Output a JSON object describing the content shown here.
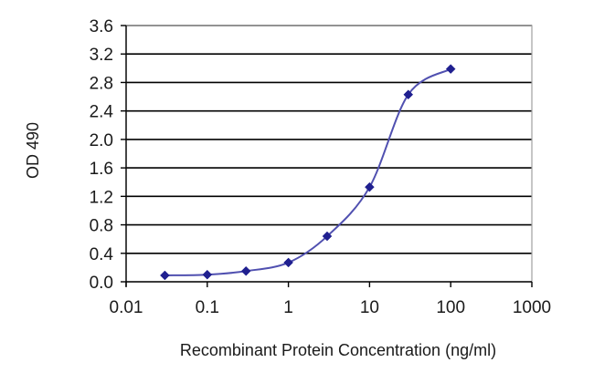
{
  "chart_data": {
    "type": "line",
    "xlabel": "Recombinant Protein Concentration (ng/ml)",
    "ylabel": "OD 490",
    "x_scale": "log",
    "xlim": [
      0.01,
      1000
    ],
    "ylim": [
      0,
      3.6
    ],
    "x_ticks": [
      0.01,
      0.1,
      1,
      10,
      100,
      1000
    ],
    "x_tick_labels": [
      "0.01",
      "0.1",
      "1",
      "10",
      "100",
      "1000"
    ],
    "y_ticks": [
      0,
      0.4,
      0.8,
      1.2,
      1.6,
      2.0,
      2.4,
      2.8,
      3.2,
      3.6
    ],
    "y_tick_labels": [
      "0.0",
      "0.4",
      "0.8",
      "1.2",
      "1.6",
      "2.0",
      "2.4",
      "2.8",
      "3.2",
      "3.6"
    ],
    "grid": "horizontal",
    "series": [
      {
        "x": [
          0.03,
          0.1,
          0.3,
          1,
          3,
          10,
          30,
          100
        ],
        "y": [
          0.09,
          0.1,
          0.15,
          0.27,
          0.64,
          1.33,
          2.63,
          2.99
        ]
      }
    ],
    "colors": {
      "line": "#5050b0",
      "marker": "#202090",
      "grid": "#000000",
      "plot_border": "#a0a0a0"
    }
  }
}
